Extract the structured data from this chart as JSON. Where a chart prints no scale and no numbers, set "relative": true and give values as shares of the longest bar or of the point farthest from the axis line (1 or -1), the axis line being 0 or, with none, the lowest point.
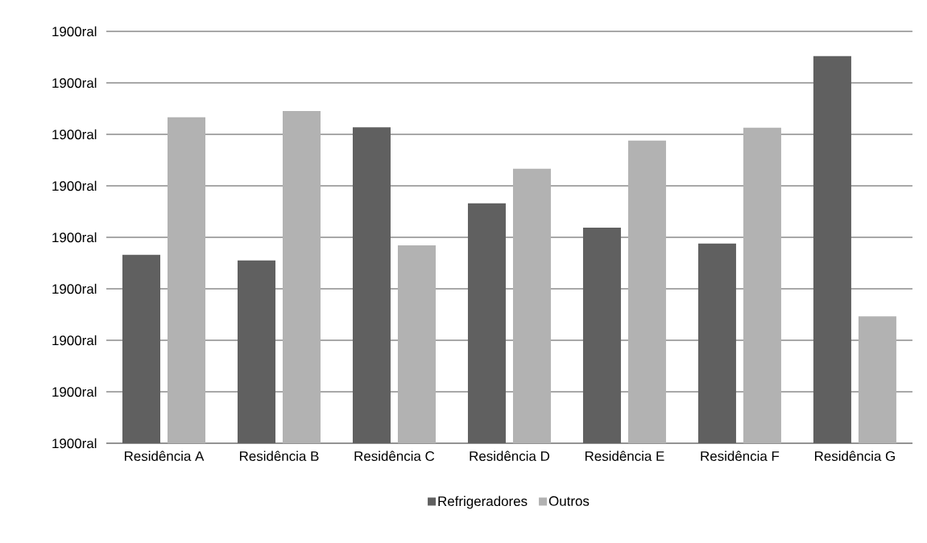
{
  "chart_data": {
    "type": "bar",
    "relative": true,
    "categories": [
      "Residência A",
      "Residência B",
      "Residência C",
      "Residência D",
      "Residência E",
      "Residência F",
      "Residência G"
    ],
    "series": [
      {
        "name": "Refrigeradores",
        "color": "#606060",
        "values": [
          0.487,
          0.472,
          0.816,
          0.62,
          0.557,
          0.516,
          1
        ]
      },
      {
        "name": "Outros",
        "color": "#b2b2b2",
        "values": [
          0.842,
          0.858,
          0.511,
          0.709,
          0.782,
          0.815,
          0.328
        ]
      }
    ],
    "annotations": [
      "1900ral",
      "1900ral",
      "1900ral",
      "1900ral",
      "1900ral",
      "1900ral",
      "1900ral",
      "1900ral",
      "1900ral"
    ],
    "grid": "y",
    "legend": "bottom"
  }
}
